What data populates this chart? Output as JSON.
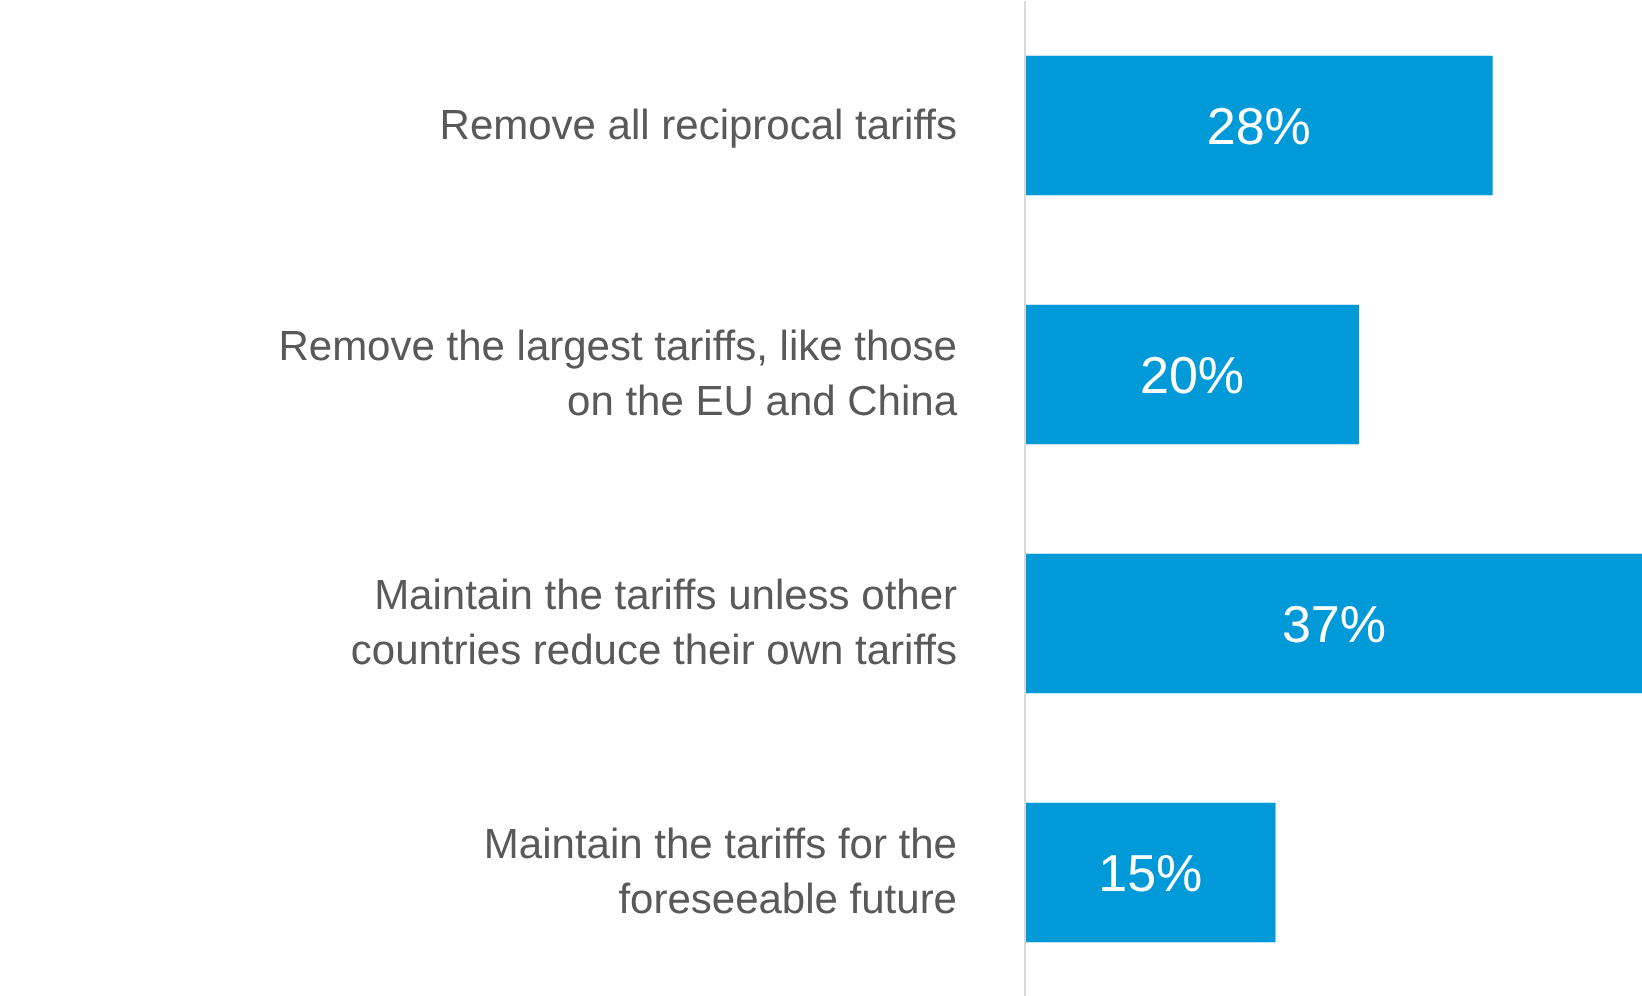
{
  "chart_data": {
    "type": "bar",
    "orientation": "horizontal",
    "categories": [
      "Remove all reciprocal tariffs",
      "Remove the largest tariffs, like those on the EU and China",
      "Maintain the tariffs unless other countries reduce their own tariffs",
      "Maintain the tariffs for the foreseeable future"
    ],
    "values": [
      28,
      20,
      37,
      15
    ],
    "value_labels": [
      "28%",
      "20%",
      "37%",
      "15%"
    ],
    "color": "#009ad8",
    "grid": false
  }
}
